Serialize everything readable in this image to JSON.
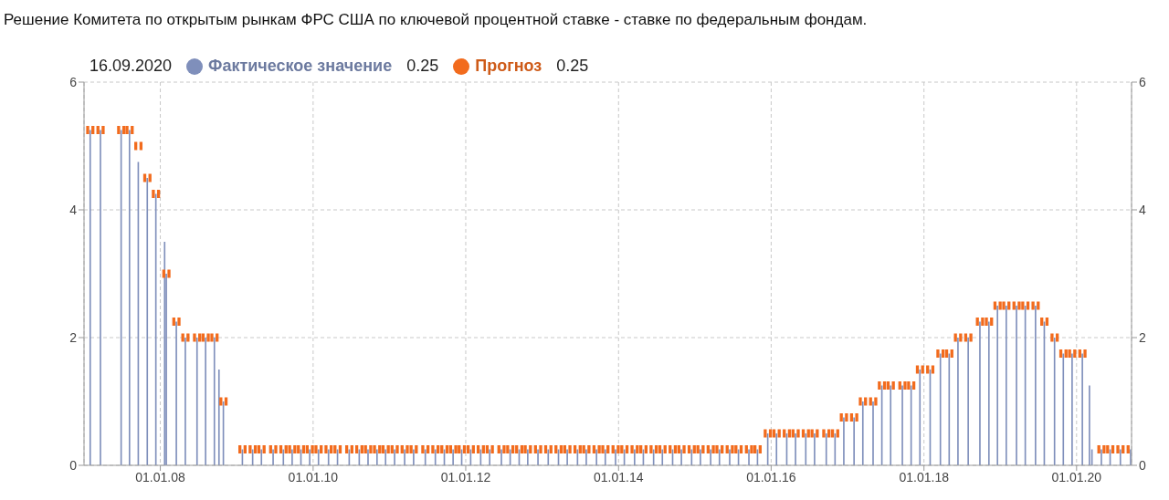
{
  "chart_data": {
    "type": "bar",
    "title": "Решение Комитета по открытым рынкам ФРС США по ключевой процентной ставке - ставке по федеральным фондам.",
    "annotations": [
      "16.09.2020",
      "0.25",
      "0.25"
    ],
    "x": [
      "2007-01-31",
      "2007-03-21",
      "2007-06-28",
      "2007-08-07",
      "2007-09-18",
      "2007-10-31",
      "2007-12-11",
      "2008-01-22",
      "2008-01-30",
      "2008-03-18",
      "2008-04-30",
      "2008-06-25",
      "2008-08-05",
      "2008-09-16",
      "2008-10-08",
      "2008-10-29",
      "2009-01-28",
      "2009-03-18",
      "2009-04-29",
      "2009-06-24",
      "2009-08-12",
      "2009-09-23",
      "2009-11-04",
      "2009-12-16",
      "2010-01-27",
      "2010-03-16",
      "2010-04-28",
      "2010-06-23",
      "2010-08-10",
      "2010-09-21",
      "2010-11-03",
      "2010-12-14",
      "2011-01-26",
      "2011-03-15",
      "2011-04-27",
      "2011-06-22",
      "2011-08-09",
      "2011-09-21",
      "2011-11-02",
      "2011-12-13",
      "2012-01-25",
      "2012-03-13",
      "2012-04-25",
      "2012-06-20",
      "2012-08-01",
      "2012-09-13",
      "2012-10-24",
      "2012-12-12",
      "2013-01-30",
      "2013-03-20",
      "2013-05-01",
      "2013-06-19",
      "2013-07-31",
      "2013-09-18",
      "2013-10-30",
      "2013-12-18",
      "2014-01-29",
      "2014-03-19",
      "2014-04-30",
      "2014-06-18",
      "2014-07-30",
      "2014-09-17",
      "2014-10-29",
      "2014-12-17",
      "2015-01-28",
      "2015-03-18",
      "2015-04-29",
      "2015-06-17",
      "2015-07-29",
      "2015-09-17",
      "2015-10-28",
      "2015-12-16",
      "2016-01-27",
      "2016-03-16",
      "2016-04-27",
      "2016-06-15",
      "2016-07-27",
      "2016-09-21",
      "2016-11-02",
      "2016-12-14",
      "2017-02-01",
      "2017-03-15",
      "2017-05-03",
      "2017-06-14",
      "2017-07-26",
      "2017-09-20",
      "2017-11-01",
      "2017-12-13",
      "2018-01-31",
      "2018-03-21",
      "2018-05-02",
      "2018-06-13",
      "2018-08-01",
      "2018-09-26",
      "2018-11-08",
      "2018-12-19",
      "2019-01-30",
      "2019-03-20",
      "2019-05-01",
      "2019-06-19",
      "2019-07-31",
      "2019-09-18",
      "2019-10-30",
      "2019-12-11",
      "2020-01-29",
      "2020-03-03",
      "2020-03-15",
      "2020-04-29",
      "2020-06-10",
      "2020-07-29",
      "2020-09-16"
    ],
    "series": [
      {
        "name": "Фактическое значение",
        "type": "bar",
        "color": "#7f8fbb",
        "values": [
          5.25,
          5.25,
          5.25,
          5.25,
          4.75,
          4.5,
          4.25,
          3.5,
          3,
          2.25,
          2,
          2,
          2,
          2,
          1.5,
          1,
          0.25,
          0.25,
          0.25,
          0.25,
          0.25,
          0.25,
          0.25,
          0.25,
          0.25,
          0.25,
          0.25,
          0.25,
          0.25,
          0.25,
          0.25,
          0.25,
          0.25,
          0.25,
          0.25,
          0.25,
          0.25,
          0.25,
          0.25,
          0.25,
          0.25,
          0.25,
          0.25,
          0.25,
          0.25,
          0.25,
          0.25,
          0.25,
          0.25,
          0.25,
          0.25,
          0.25,
          0.25,
          0.25,
          0.25,
          0.25,
          0.25,
          0.25,
          0.25,
          0.25,
          0.25,
          0.25,
          0.25,
          0.25,
          0.25,
          0.25,
          0.25,
          0.25,
          0.25,
          0.25,
          0.25,
          0.5,
          0.5,
          0.5,
          0.5,
          0.5,
          0.5,
          0.5,
          0.5,
          0.75,
          0.75,
          1,
          1,
          1.25,
          1.25,
          1.25,
          1.25,
          1.5,
          1.5,
          1.75,
          1.75,
          2,
          2,
          2.25,
          2.25,
          2.5,
          2.5,
          2.5,
          2.5,
          2.5,
          2.25,
          2,
          1.75,
          1.75,
          1.75,
          1.25,
          0.25,
          0.25,
          0.25,
          0.25,
          0.25
        ]
      },
      {
        "name": "Прогноз",
        "type": "scatter",
        "color": "#f26b1d",
        "marker": "square",
        "values": [
          5.25,
          5.25,
          5.25,
          5.25,
          5,
          4.5,
          4.25,
          null,
          3,
          2.25,
          2,
          2,
          2,
          2,
          null,
          1,
          0.25,
          0.25,
          0.25,
          0.25,
          0.25,
          0.25,
          0.25,
          0.25,
          0.25,
          0.25,
          0.25,
          0.25,
          0.25,
          0.25,
          0.25,
          0.25,
          0.25,
          0.25,
          0.25,
          0.25,
          0.25,
          0.25,
          0.25,
          0.25,
          0.25,
          0.25,
          0.25,
          0.25,
          0.25,
          0.25,
          0.25,
          0.25,
          0.25,
          0.25,
          0.25,
          0.25,
          0.25,
          0.25,
          0.25,
          0.25,
          0.25,
          0.25,
          0.25,
          0.25,
          0.25,
          0.25,
          0.25,
          0.25,
          0.25,
          0.25,
          0.25,
          0.25,
          0.25,
          0.25,
          0.25,
          0.5,
          0.5,
          0.5,
          0.5,
          0.5,
          0.5,
          0.5,
          0.5,
          0.75,
          0.75,
          1,
          1,
          1.25,
          1.25,
          1.25,
          1.25,
          1.5,
          1.5,
          1.75,
          1.75,
          2,
          2,
          2.25,
          2.25,
          2.5,
          2.5,
          2.5,
          2.5,
          2.5,
          2.25,
          2,
          1.75,
          1.75,
          1.75,
          null,
          null,
          0.25,
          0.25,
          0.25,
          0.25
        ]
      }
    ],
    "xlim": [
      "2007-01-01",
      "2020-09-20"
    ],
    "xticks": [
      {
        "value": "2008-01-01",
        "label": "01.01.08"
      },
      {
        "value": "2010-01-01",
        "label": "01.01.10"
      },
      {
        "value": "2012-01-01",
        "label": "01.01.12"
      },
      {
        "value": "2014-01-01",
        "label": "01.01.14"
      },
      {
        "value": "2016-01-01",
        "label": "01.01.16"
      },
      {
        "value": "2018-01-01",
        "label": "01.01.18"
      },
      {
        "value": "2020-01-01",
        "label": "01.01.20"
      }
    ],
    "ylim": [
      0,
      6
    ],
    "yticks": [
      0,
      2,
      4,
      6
    ],
    "y2lim": [
      0,
      6
    ],
    "y2ticks": [
      0,
      2,
      4,
      6
    ],
    "grid": true,
    "legend": "top left"
  }
}
